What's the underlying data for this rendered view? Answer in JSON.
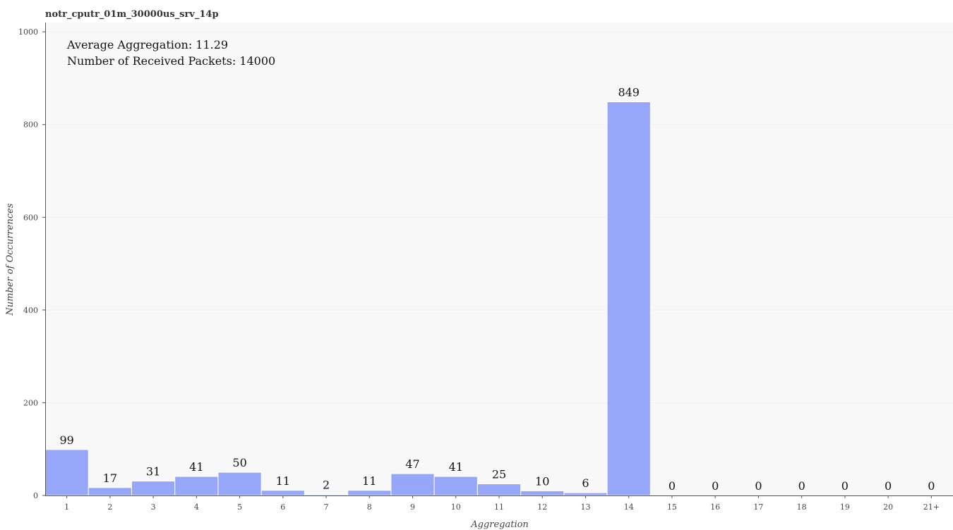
{
  "chart_data": {
    "type": "bar",
    "title": "notr_cputr_01m_30000us_srv_14p",
    "xlabel": "Aggregation",
    "ylabel": "Number of Occurrences",
    "categories": [
      "1",
      "2",
      "3",
      "4",
      "5",
      "6",
      "7",
      "8",
      "9",
      "10",
      "11",
      "12",
      "13",
      "14",
      "15",
      "16",
      "17",
      "18",
      "19",
      "20",
      "21+"
    ],
    "values": [
      99,
      17,
      31,
      41,
      50,
      11,
      2,
      11,
      47,
      41,
      25,
      10,
      6,
      849,
      0,
      0,
      0,
      0,
      0,
      0,
      0
    ],
    "ylim": [
      0,
      1020
    ],
    "yticks": [
      0,
      200,
      400,
      600,
      800,
      1000
    ],
    "grid": true,
    "annotations": [
      "Average Aggregation: 11.29",
      "Number of Received Packets: 14000"
    ],
    "colors": {
      "bar": "#96a6f8",
      "bar_edge": "#ffffff",
      "plot_bg": "#f8f8f8",
      "grid": "#efefef"
    }
  }
}
